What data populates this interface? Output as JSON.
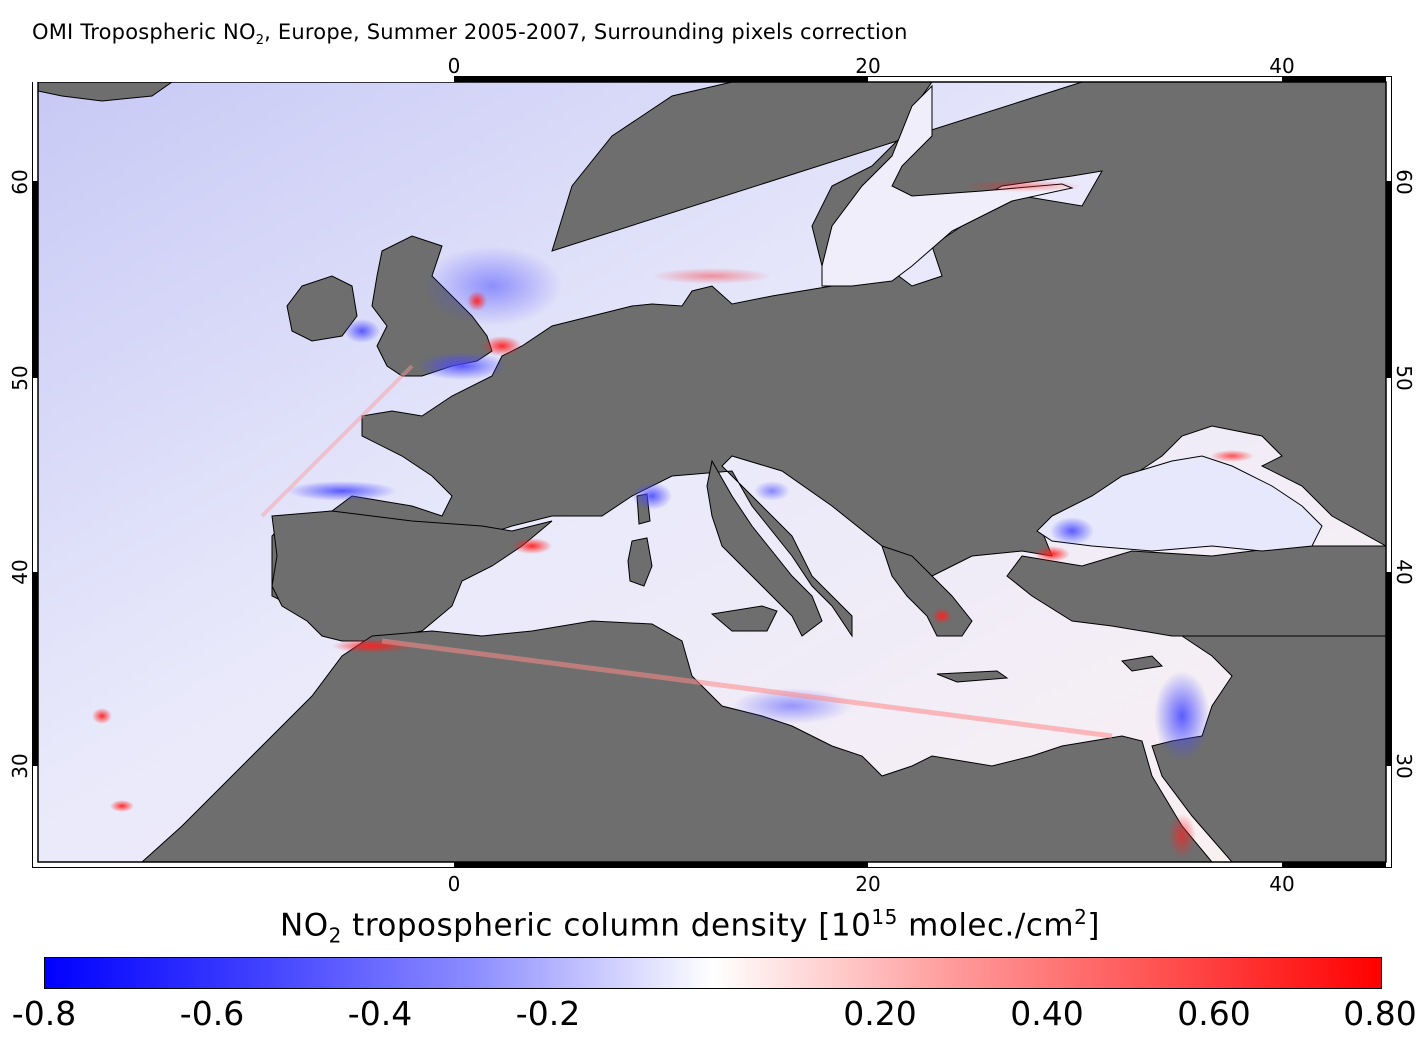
{
  "title": {
    "prefix": "OMI Tropospheric NO",
    "subscript": "2",
    "suffix": ", Europe, Summer 2005-2007, Surrounding pixels correction"
  },
  "map": {
    "projection": "lat-lon",
    "lon_range": [
      -25,
      45
    ],
    "lat_range": [
      25,
      65
    ],
    "lon_ticks": [
      "0",
      "20",
      "40"
    ],
    "lat_ticks": [
      "30",
      "40",
      "50",
      "60"
    ],
    "land_color": "#6e6e6e",
    "coast_color": "#000000"
  },
  "colorbar": {
    "title_main": "NO",
    "title_sub": "2",
    "title_rest": " tropospheric column density [10",
    "title_sup": "15",
    "title_unit": " molec./cm",
    "title_sup2": "2",
    "title_close": "]",
    "min": -0.8,
    "max": 0.8,
    "tick_labels": [
      "-0.8",
      "-0.6",
      "-0.4",
      "-0.2",
      "0.20",
      "0.40",
      "0.60",
      "0.80"
    ],
    "low_color": "#0000ff",
    "mid_color": "#ffffff",
    "high_color": "#ff0000"
  }
}
